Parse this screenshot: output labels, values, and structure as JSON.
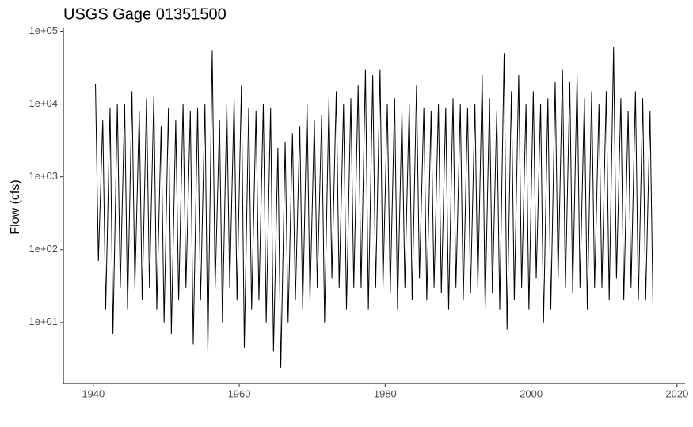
{
  "chart_data": {
    "type": "line",
    "title": "USGS Gage 01351500",
    "y_label": "Flow (cfs)",
    "log_y": true,
    "color": "#000000",
    "x": [
      1940.3,
      1940.7,
      1941.3,
      1941.7,
      1942.3,
      1942.7,
      1943.3,
      1943.7,
      1944.3,
      1944.7,
      1945.3,
      1945.7,
      1946.3,
      1946.7,
      1947.3,
      1947.7,
      1948.3,
      1948.7,
      1949.3,
      1949.7,
      1950.3,
      1950.7,
      1951.3,
      1951.7,
      1952.3,
      1952.7,
      1953.3,
      1953.7,
      1954.3,
      1954.7,
      1955.3,
      1955.7,
      1956.3,
      1956.7,
      1957.3,
      1957.7,
      1958.3,
      1958.7,
      1959.3,
      1959.7,
      1960.3,
      1960.7,
      1961.3,
      1961.7,
      1962.3,
      1962.7,
      1963.3,
      1963.7,
      1964.3,
      1964.7,
      1965.3,
      1965.7,
      1966.3,
      1966.7,
      1967.3,
      1967.7,
      1968.3,
      1968.7,
      1969.3,
      1969.7,
      1970.3,
      1970.7,
      1971.3,
      1971.7,
      1972.3,
      1972.7,
      1973.3,
      1973.7,
      1974.3,
      1974.7,
      1975.3,
      1975.7,
      1976.3,
      1976.7,
      1977.3,
      1977.7,
      1978.3,
      1978.7,
      1979.3,
      1979.7,
      1980.3,
      1980.7,
      1981.3,
      1981.7,
      1982.3,
      1982.7,
      1983.3,
      1983.7,
      1984.3,
      1984.7,
      1985.3,
      1985.7,
      1986.3,
      1986.7,
      1987.3,
      1987.7,
      1988.3,
      1988.7,
      1989.3,
      1989.7,
      1990.3,
      1990.7,
      1991.3,
      1991.7,
      1992.3,
      1992.7,
      1993.3,
      1993.7,
      1994.3,
      1994.7,
      1995.3,
      1995.7,
      1996.3,
      1996.7,
      1997.3,
      1997.7,
      1998.3,
      1998.7,
      1999.3,
      1999.7,
      2000.3,
      2000.7,
      2001.3,
      2001.7,
      2002.3,
      2002.7,
      2003.3,
      2003.7,
      2004.3,
      2004.7,
      2005.3,
      2005.7,
      2006.3,
      2006.7,
      2007.3,
      2007.7,
      2008.3,
      2008.7,
      2009.3,
      2009.7,
      2010.3,
      2010.7,
      2011.3,
      2011.7,
      2012.3,
      2012.7,
      2013.3,
      2013.7,
      2014.3,
      2014.7,
      2015.3,
      2015.7,
      2016.3,
      2016.7
    ],
    "values": [
      19000,
      70,
      6000,
      15,
      9000,
      7,
      10000,
      30,
      10000,
      15,
      15000,
      30,
      8000,
      20,
      12000,
      30,
      13000,
      15,
      5000,
      10,
      9000,
      7,
      6000,
      20,
      10000,
      30,
      8000,
      5,
      9000,
      20,
      10000,
      4,
      55000,
      30,
      6000,
      10,
      10000,
      30,
      12000,
      20,
      18000,
      4.5,
      9000,
      15,
      8000,
      20,
      10000,
      10,
      9000,
      4,
      2500,
      2.4,
      3000,
      10,
      4000,
      20,
      5000,
      15,
      10000,
      20,
      6000,
      30,
      7000,
      10,
      12000,
      40,
      15000,
      30,
      10000,
      15,
      12000,
      30,
      18000,
      30,
      30000,
      15,
      25000,
      30,
      30000,
      30,
      10000,
      25,
      12000,
      15,
      8000,
      30,
      10000,
      20,
      18000,
      40,
      9000,
      20,
      8000,
      30,
      10000,
      25,
      9000,
      15,
      12000,
      30,
      10000,
      20,
      9000,
      25,
      10000,
      30,
      25000,
      15,
      12000,
      25,
      8000,
      15,
      50000,
      8,
      15000,
      20,
      25000,
      30,
      10000,
      15,
      15000,
      40,
      10000,
      10,
      12000,
      15,
      20000,
      40,
      30000,
      30,
      20000,
      25,
      25000,
      30,
      12000,
      15,
      15000,
      30,
      10000,
      30,
      15000,
      20,
      60000,
      40,
      12000,
      20,
      8000,
      30,
      15000,
      20,
      12000,
      20,
      8000,
      18
    ],
    "xlim": [
      1935.9,
      2021.1
    ],
    "xticks": [
      1940,
      1960,
      1980,
      2000,
      2020
    ],
    "ylim": [
      1.45,
      112000
    ],
    "yticks": [
      {
        "value": 10,
        "label": "1e+01"
      },
      {
        "value": 100,
        "label": "1e+02"
      },
      {
        "value": 1000,
        "label": "1e+03"
      },
      {
        "value": 10000,
        "label": "1e+04"
      },
      {
        "value": 100000,
        "label": "1e+05"
      }
    ]
  }
}
